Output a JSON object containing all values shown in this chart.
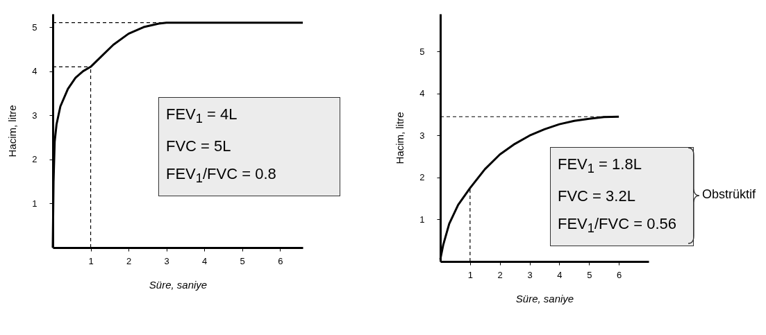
{
  "chart_data": [
    {
      "type": "line",
      "xlabel": "Süre, saniye",
      "ylabel": "Hacim, litre",
      "xlim": [
        0,
        6.6
      ],
      "ylim": [
        0,
        5.3
      ],
      "xticks": [
        1,
        2,
        3,
        4,
        5,
        6
      ],
      "yticks": [
        1,
        2,
        3,
        4,
        5
      ],
      "grid": false,
      "marker": "none",
      "line_style": "solid",
      "series": [
        {
          "color": "#000000",
          "x": [
            0,
            0.02,
            0.05,
            0.1,
            0.2,
            0.4,
            0.6,
            0.8,
            1,
            1.3,
            1.6,
            2,
            2.4,
            2.8,
            3,
            4,
            6.6
          ],
          "values": [
            0,
            1.5,
            2.4,
            2.8,
            3.2,
            3.6,
            3.85,
            4.0,
            4.1,
            4.35,
            4.6,
            4.85,
            5.0,
            5.08,
            5.1,
            5.1,
            5.1
          ]
        }
      ],
      "ref_lines": [
        {
          "axis": "y",
          "value": 5.1,
          "line_style": "dashed"
        },
        {
          "axis": "y",
          "value": 4.1,
          "line_style": "dashed"
        },
        {
          "axis": "x",
          "value": 1,
          "line_style": "dashed"
        }
      ],
      "annotations": [
        "FEV$_{1}$ = 4L",
        "FVC  = 5L",
        "FEV$_{1}$/FVC = 0.8"
      ]
    },
    {
      "type": "line",
      "xlabel": "Süre, saniye",
      "ylabel": "Hacim, litre",
      "xlim": [
        0,
        7
      ],
      "ylim": [
        0,
        5.9
      ],
      "xticks": [
        1,
        2,
        3,
        4,
        5,
        6
      ],
      "yticks": [
        1,
        2,
        3,
        4,
        5
      ],
      "grid": false,
      "marker": "none",
      "line_style": "solid",
      "series": [
        {
          "color": "#000000",
          "x": [
            0,
            0.1,
            0.3,
            0.6,
            1,
            1.5,
            2,
            2.5,
            3,
            3.5,
            4,
            4.5,
            5,
            5.5,
            6
          ],
          "values": [
            0.05,
            0.4,
            0.9,
            1.35,
            1.75,
            2.2,
            2.55,
            2.8,
            3.0,
            3.15,
            3.27,
            3.35,
            3.4,
            3.44,
            3.45
          ]
        }
      ],
      "ref_lines": [
        {
          "axis": "y",
          "value": 3.45,
          "line_style": "dashed"
        },
        {
          "axis": "x",
          "value": 1,
          "line_style": "dashed"
        }
      ],
      "annotations": [
        "FEV$_{1}$ = 1.8L",
        "FVC  = 3.2L",
        "FEV$_{1}$/FVC = 0.56",
        "Obstrüktif"
      ]
    }
  ]
}
